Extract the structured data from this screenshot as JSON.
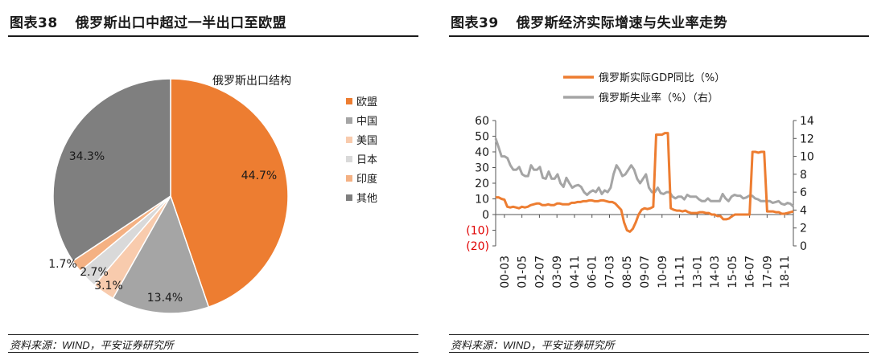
{
  "fig38": {
    "number": "图表38",
    "title": "俄罗斯出口中超过一半出口至欧盟",
    "source": "资料来源：WIND，平安证券研究所"
  },
  "fig39": {
    "number": "图表39",
    "title": "俄罗斯经济实际增速与失业率走势",
    "source": "资料来源：WIND，平安证券研究所"
  },
  "chart_data": [
    {
      "type": "pie",
      "title": "俄罗斯出口结构",
      "legend_position": "right",
      "slices": [
        {
          "name": "欧盟",
          "value": 44.7,
          "label": "44.7%",
          "color": "#ED7D31"
        },
        {
          "name": "中国",
          "value": 13.4,
          "label": "13.4%",
          "color": "#A5A5A5"
        },
        {
          "name": "美国",
          "value": 3.1,
          "label": "3.1%",
          "color": "#F8CBAD"
        },
        {
          "name": "日本",
          "value": 2.7,
          "label": "2.7%",
          "color": "#D9D9D9"
        },
        {
          "name": "印度",
          "value": 1.7,
          "label": "1.7%",
          "color": "#F4B183"
        },
        {
          "name": "其他",
          "value": 34.3,
          "label": "34.3%",
          "color": "#7F7F7F"
        }
      ]
    },
    {
      "type": "line",
      "legend_position": "top",
      "x_ticks": [
        "00-03",
        "01-05",
        "02-07",
        "03-09",
        "04-11",
        "06-01",
        "07-03",
        "08-05",
        "09-07",
        "10-09",
        "11-11",
        "13-01",
        "14-03",
        "15-05",
        "16-07",
        "17-09",
        "18-11"
      ],
      "y_left_ticks": [
        "60",
        "50",
        "40",
        "30",
        "20",
        "10",
        "0",
        "(10)",
        "(20)"
      ],
      "y_left_range": [
        -20,
        60
      ],
      "y_right_ticks": [
        "14",
        "12",
        "10",
        "8",
        "6",
        "4",
        "2",
        "0"
      ],
      "y_right_range": [
        0,
        14
      ],
      "series": [
        {
          "name": "俄罗斯实际GDP同比（%）",
          "axis": "left",
          "color": "#ED7D31",
          "values": [
            11,
            11,
            10,
            9.5,
            5,
            4.5,
            5,
            4.5,
            4,
            5,
            4.5,
            5,
            6,
            6.5,
            7,
            7,
            6,
            6,
            6.5,
            6,
            6,
            7,
            7,
            6.5,
            6.5,
            6.5,
            7.5,
            7.5,
            8,
            8,
            8.5,
            8.5,
            9,
            9,
            8.5,
            8.5,
            9,
            9,
            8.5,
            8,
            8,
            7,
            5,
            3,
            -5,
            -10,
            -11,
            -9,
            -5,
            0,
            3,
            4,
            3.5,
            4,
            5,
            51,
            51,
            51,
            52,
            52,
            4,
            3,
            2.5,
            2.5,
            2,
            2.5,
            1.5,
            1,
            1,
            1,
            1.5,
            1.5,
            1,
            1,
            0,
            0,
            -1,
            -1,
            -3,
            -3,
            -2.5,
            -1,
            0,
            0,
            0,
            0,
            0,
            0,
            40,
            40,
            39.5,
            40,
            40,
            2,
            2,
            2,
            1.5,
            1.5,
            0.5,
            0.5,
            1,
            1.5,
            2
          ]
        },
        {
          "name": "俄罗斯失业率（%）（右）",
          "axis": "right",
          "color": "#A5A5A5",
          "values": [
            12,
            11,
            10,
            10,
            9.8,
            9,
            8.5,
            8.5,
            8.8,
            8,
            7.8,
            7.8,
            9,
            8.5,
            8.5,
            8.8,
            7.6,
            7.5,
            8.3,
            7.5,
            7.5,
            8,
            7,
            6.6,
            7.6,
            7,
            6.5,
            6.7,
            6.8,
            6.6,
            6,
            5.7,
            6,
            6.2,
            6,
            6.5,
            5.8,
            6.2,
            6,
            6.5,
            8,
            9,
            8.5,
            7.8,
            8,
            8.5,
            9,
            8.5,
            7.5,
            7,
            7.5,
            8,
            6.5,
            6,
            6,
            6.5,
            5.9,
            5.8,
            6,
            6,
            5.5,
            5.3,
            5.5,
            5.5,
            5.2,
            5.7,
            5.5,
            5.5,
            5.5,
            5.2,
            5,
            5,
            5.3,
            5,
            5,
            5,
            5,
            5.8,
            5.3,
            5,
            5.5,
            5.7,
            5.6,
            5.6,
            5.3,
            5.4,
            5.6,
            5.6,
            5.3,
            5.2,
            5,
            5,
            5,
            5,
            4.8,
            4.9,
            5,
            4.7,
            4.6,
            4.8,
            4.7,
            4.4
          ]
        }
      ]
    }
  ]
}
